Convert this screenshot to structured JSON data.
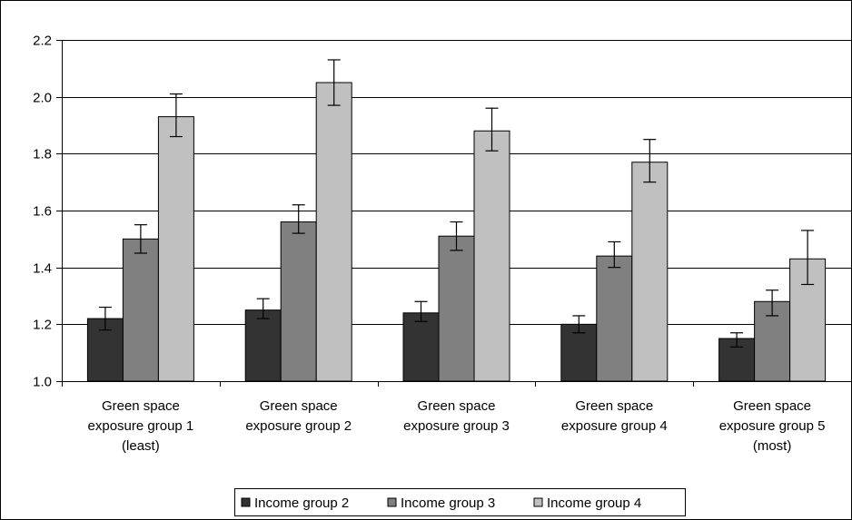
{
  "chart_data": {
    "type": "bar",
    "title": "",
    "xlabel": "",
    "ylabel": "",
    "ylim": [
      1.0,
      2.2
    ],
    "yticks": [
      "1.0",
      "1.2",
      "1.4",
      "1.6",
      "1.8",
      "2.0",
      "2.2"
    ],
    "grid": true,
    "legend_position": "bottom",
    "categories": [
      [
        "Green space",
        "exposure group 1",
        "(least)"
      ],
      [
        "Green space",
        "exposure group 2"
      ],
      [
        "Green space",
        "exposure group 3"
      ],
      [
        "Green space",
        "exposure group 4"
      ],
      [
        "Green space",
        "exposure group 5",
        "(most)"
      ]
    ],
    "series": [
      {
        "name": "Income group 2",
        "color": "#333333",
        "values": [
          1.22,
          1.25,
          1.24,
          1.2,
          1.15
        ],
        "err_low": [
          1.18,
          1.22,
          1.21,
          1.17,
          1.12
        ],
        "err_high": [
          1.26,
          1.29,
          1.28,
          1.23,
          1.17
        ]
      },
      {
        "name": "Income group 3",
        "color": "#808080",
        "values": [
          1.5,
          1.56,
          1.51,
          1.44,
          1.28
        ],
        "err_low": [
          1.45,
          1.52,
          1.46,
          1.4,
          1.23
        ],
        "err_high": [
          1.55,
          1.62,
          1.56,
          1.49,
          1.32
        ]
      },
      {
        "name": "Income group 4",
        "color": "#c0c0c0",
        "values": [
          1.93,
          2.05,
          1.88,
          1.77,
          1.43
        ],
        "err_low": [
          1.86,
          1.97,
          1.81,
          1.7,
          1.34
        ],
        "err_high": [
          2.01,
          2.13,
          1.96,
          1.85,
          1.53
        ]
      }
    ]
  }
}
